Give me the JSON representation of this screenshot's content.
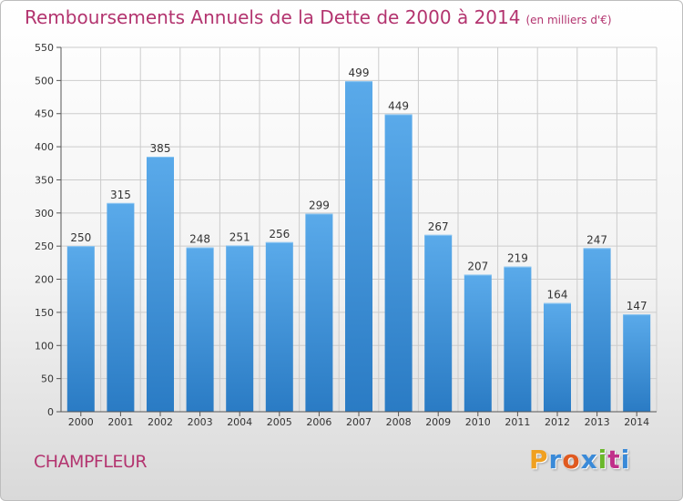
{
  "header": {
    "title": "Remboursements Annuels de la Dette de 2000 à 2014",
    "subtitle": "(en milliers d'€)"
  },
  "footer": {
    "town": "CHAMPFLEUR",
    "logo_text": "Proxiti"
  },
  "colors": {
    "accent": "#b3346f",
    "bar_top": "#5aaaea",
    "bar_bottom": "#2a7bc4",
    "grid": "#cccccc",
    "axis": "#555555"
  },
  "chart_data": {
    "type": "bar",
    "title": "Remboursements Annuels de la Dette de 2000 à 2014",
    "xlabel": "",
    "ylabel": "",
    "categories": [
      "2000",
      "2001",
      "2002",
      "2003",
      "2004",
      "2005",
      "2006",
      "2007",
      "2008",
      "2009",
      "2010",
      "2011",
      "2012",
      "2013",
      "2014"
    ],
    "values": [
      250,
      315,
      385,
      248,
      251,
      256,
      299,
      499,
      449,
      267,
      207,
      219,
      164,
      247,
      147
    ],
    "ylim": [
      0,
      550
    ],
    "yticks": [
      0,
      50,
      100,
      150,
      200,
      250,
      300,
      350,
      400,
      450,
      500,
      550
    ],
    "grid": true,
    "data_labels": true
  }
}
